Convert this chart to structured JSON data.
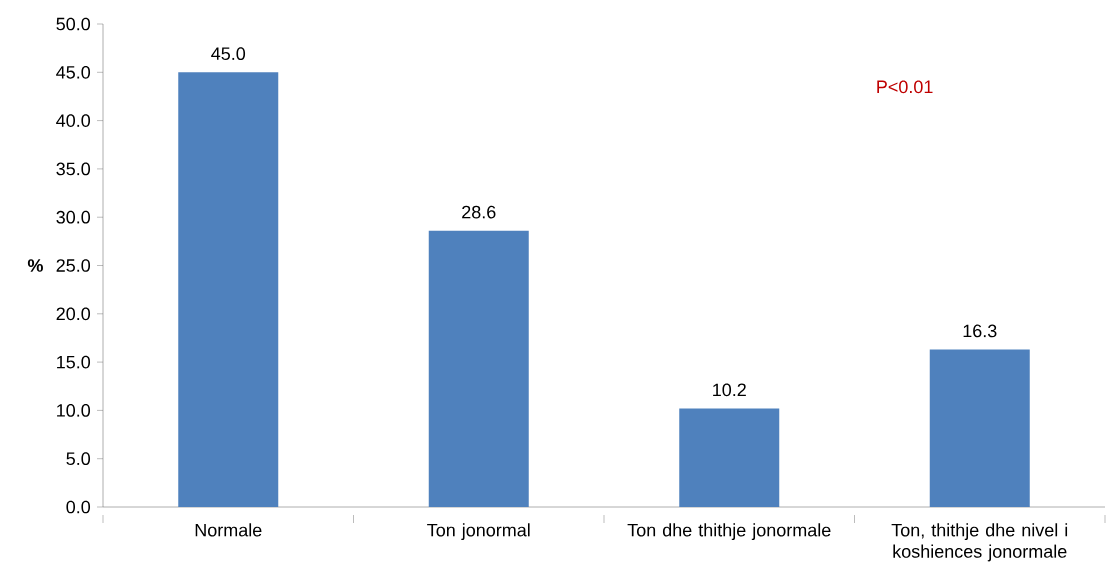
{
  "chart_data": {
    "type": "bar",
    "categories": [
      "Normale",
      "Ton jonormal",
      "Ton dhe thithje jonormale",
      "Ton, thithje dhe nivel i koshiences jonormale"
    ],
    "values": [
      45.0,
      28.6,
      10.2,
      16.3
    ],
    "value_labels": [
      "45.0",
      "28.6",
      "10.2",
      "16.3"
    ],
    "color": "#4f81bd",
    "ylabel": "%",
    "ylim": [
      0,
      50
    ],
    "yticks": [
      {
        "value": 0,
        "label": "0.0"
      },
      {
        "value": 5,
        "label": "5.0"
      },
      {
        "value": 10,
        "label": "10.0"
      },
      {
        "value": 15,
        "label": "15.0"
      },
      {
        "value": 20,
        "label": "20.0"
      },
      {
        "value": 25,
        "label": "25.0"
      },
      {
        "value": 30,
        "label": "30.0"
      },
      {
        "value": 35,
        "label": "35.0"
      },
      {
        "value": 40,
        "label": "40.0"
      },
      {
        "value": 45,
        "label": "45.0"
      },
      {
        "value": 50,
        "label": "50.0"
      }
    ],
    "annotations": [
      "P<0.01"
    ],
    "grid": false
  }
}
